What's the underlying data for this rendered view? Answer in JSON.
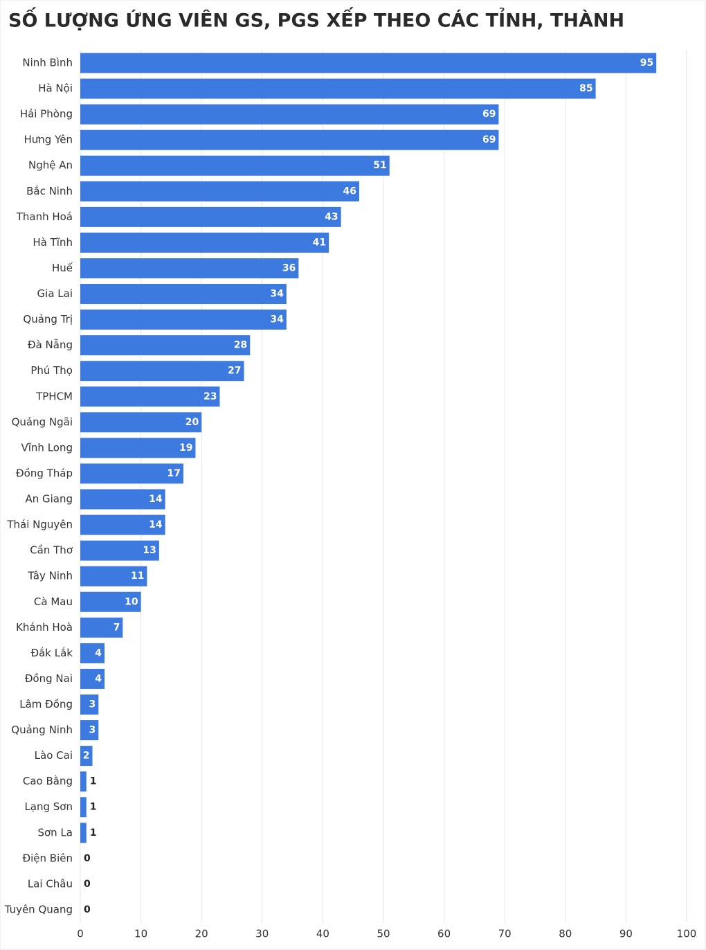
{
  "chart_data": {
    "type": "bar",
    "orientation": "horizontal",
    "title": "SỐ LƯỢNG ỨNG VIÊN GS, PGS XẾP THEO CÁC TỈNH, THÀNH",
    "categories": [
      "Ninh Bình",
      "Hà Nội",
      "Hải Phòng",
      "Hưng Yên",
      "Nghệ An",
      "Bắc Ninh",
      "Thanh Hoá",
      "Hà Tĩnh",
      "Huế",
      "Gia Lai",
      "Quảng Trị",
      "Đà Nẵng",
      "Phú Thọ",
      "TPHCM",
      "Quảng Ngãi",
      "Vĩnh Long",
      "Đồng Tháp",
      "An Giang",
      "Thái Nguyên",
      "Cần Thơ",
      "Tây Ninh",
      "Cà Mau",
      "Khánh Hoà",
      "Đắk Lắk",
      "Đồng Nai",
      "Lâm Đồng",
      "Quảng Ninh",
      "Lào Cai",
      "Cao Bằng",
      "Lạng Sơn",
      "Sơn La",
      "Điện Biên",
      "Lai Châu",
      "Tuyên Quang"
    ],
    "values": [
      95,
      85,
      69,
      69,
      51,
      46,
      43,
      41,
      36,
      34,
      34,
      28,
      27,
      23,
      20,
      19,
      17,
      14,
      14,
      13,
      11,
      10,
      7,
      4,
      4,
      3,
      3,
      2,
      1,
      1,
      1,
      0,
      0,
      0
    ],
    "color": "#3c7ae0",
    "xlim": [
      0,
      100
    ],
    "xticks": [
      0,
      10,
      20,
      30,
      40,
      50,
      60,
      70,
      80,
      90,
      100
    ],
    "grid": true
  }
}
